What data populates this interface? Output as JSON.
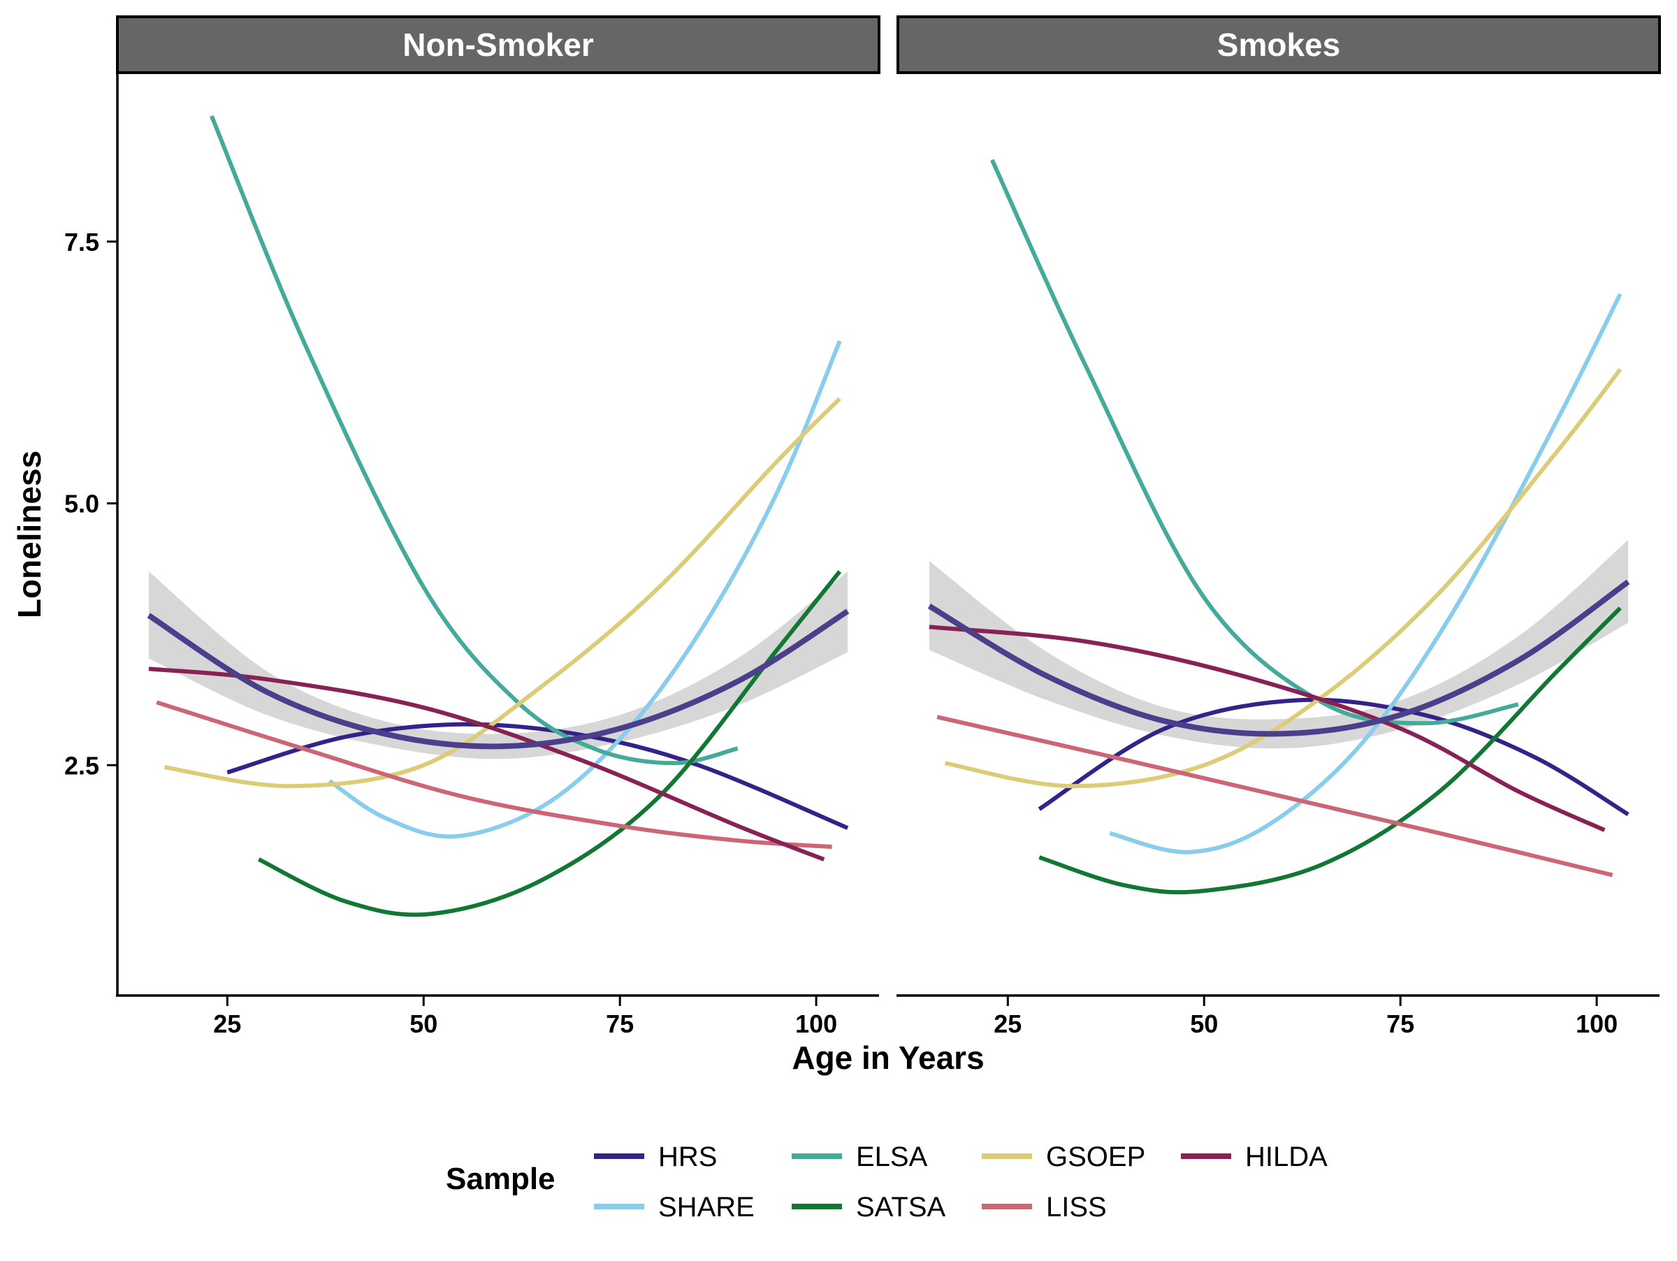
{
  "chart_data": {
    "type": "line",
    "xlabel": "Age in Years",
    "ylabel": "Loneliness",
    "xlim": [
      11,
      108
    ],
    "ylim": [
      0.3,
      9.1
    ],
    "xticks": [
      25,
      50,
      75,
      100
    ],
    "yticks": [
      2.5,
      5.0,
      7.5
    ],
    "xtick_labels": [
      "25",
      "50",
      "75",
      "100"
    ],
    "ytick_labels": [
      "2.5",
      "5.0",
      "7.5"
    ],
    "legend": {
      "title": "Sample",
      "position": "bottom"
    },
    "colors": {
      "HRS": "#332288",
      "SHARE": "#88CCEE",
      "ELSA": "#44AA99",
      "SATSA": "#117733",
      "GSOEP": "#DDCC77",
      "LISS": "#CC6677",
      "HILDA": "#882255",
      "overall_line": "#4B3F8C",
      "ribbon": "#BDBDBD"
    },
    "legend_order": [
      "HRS",
      "SHARE",
      "ELSA",
      "SATSA",
      "GSOEP",
      "LISS",
      "HILDA"
    ],
    "panels": [
      {
        "title": "Non-Smoker",
        "series": [
          {
            "name": "HRS",
            "x": [
              25,
              40,
              55,
              70,
              85,
              104
            ],
            "y": [
              2.43,
              2.77,
              2.89,
              2.79,
              2.5,
              1.9
            ]
          },
          {
            "name": "SHARE",
            "x": [
              38,
              45,
              54,
              65,
              75,
              85,
              95,
              103
            ],
            "y": [
              2.35,
              2.0,
              1.82,
              2.1,
              2.75,
              3.75,
              5.1,
              6.55
            ]
          },
          {
            "name": "ELSA",
            "x": [
              23,
              35,
              50,
              62,
              72,
              82,
              90
            ],
            "y": [
              8.7,
              6.5,
              4.2,
              3.1,
              2.65,
              2.52,
              2.66
            ]
          },
          {
            "name": "SATSA",
            "x": [
              29,
              40,
              51,
              65,
              80,
              95,
              103
            ],
            "y": [
              1.6,
              1.2,
              1.08,
              1.4,
              2.2,
              3.6,
              4.35
            ]
          },
          {
            "name": "GSOEP",
            "x": [
              17,
              33,
              50,
              65,
              80,
              95,
              103
            ],
            "y": [
              2.48,
              2.3,
              2.5,
              3.25,
              4.2,
              5.4,
              6.0
            ]
          },
          {
            "name": "LISS",
            "x": [
              16,
              35,
              55,
              75,
              90,
              102
            ],
            "y": [
              3.1,
              2.65,
              2.2,
              1.92,
              1.78,
              1.72
            ]
          },
          {
            "name": "HILDA",
            "x": [
              15,
              30,
              50,
              70,
              90,
              101
            ],
            "y": [
              3.42,
              3.32,
              3.05,
              2.55,
              1.92,
              1.6
            ]
          }
        ],
        "overall": {
          "x": [
            15,
            30,
            45,
            60,
            75,
            90,
            104
          ],
          "y": [
            3.93,
            3.2,
            2.8,
            2.68,
            2.85,
            3.3,
            3.97
          ],
          "lower": [
            3.52,
            2.98,
            2.68,
            2.56,
            2.72,
            3.07,
            3.58
          ],
          "upper": [
            4.35,
            3.4,
            2.92,
            2.8,
            2.98,
            3.52,
            4.35
          ]
        }
      },
      {
        "title": "Smokes",
        "series": [
          {
            "name": "HRS",
            "x": [
              29,
              45,
              62,
              78,
              92,
              104
            ],
            "y": [
              2.08,
              2.85,
              3.12,
              2.98,
              2.58,
              2.03
            ]
          },
          {
            "name": "SHARE",
            "x": [
              38,
              48,
              58,
              70,
              82,
              95,
              103
            ],
            "y": [
              1.85,
              1.67,
              1.92,
              2.7,
              4.0,
              5.8,
              7.0
            ]
          },
          {
            "name": "ELSA",
            "x": [
              23,
              35,
              50,
              65,
              78,
              90
            ],
            "y": [
              8.28,
              6.3,
              4.1,
              3.1,
              2.9,
              3.08
            ]
          },
          {
            "name": "SATSA",
            "x": [
              29,
              40,
              50,
              65,
              80,
              95,
              103
            ],
            "y": [
              1.62,
              1.35,
              1.3,
              1.55,
              2.25,
              3.4,
              4.0
            ]
          },
          {
            "name": "GSOEP",
            "x": [
              17,
              33,
              50,
              65,
              80,
              95,
              103
            ],
            "y": [
              2.52,
              2.3,
              2.5,
              3.15,
              4.15,
              5.5,
              6.28
            ]
          },
          {
            "name": "LISS",
            "x": [
              16,
              40,
              60,
              80,
              102
            ],
            "y": [
              2.96,
              2.55,
              2.2,
              1.85,
              1.45
            ]
          },
          {
            "name": "HILDA",
            "x": [
              15,
              35,
              55,
              75,
              90,
              101
            ],
            "y": [
              3.82,
              3.68,
              3.35,
              2.85,
              2.25,
              1.88
            ]
          }
        ],
        "overall": {
          "x": [
            15,
            30,
            45,
            60,
            75,
            90,
            104
          ],
          "y": [
            4.02,
            3.35,
            2.92,
            2.8,
            2.98,
            3.5,
            4.25
          ],
          "lower": [
            3.6,
            3.12,
            2.78,
            2.66,
            2.84,
            3.27,
            3.86
          ],
          "upper": [
            4.45,
            3.58,
            3.05,
            2.94,
            3.12,
            3.73,
            4.65
          ]
        }
      }
    ]
  }
}
